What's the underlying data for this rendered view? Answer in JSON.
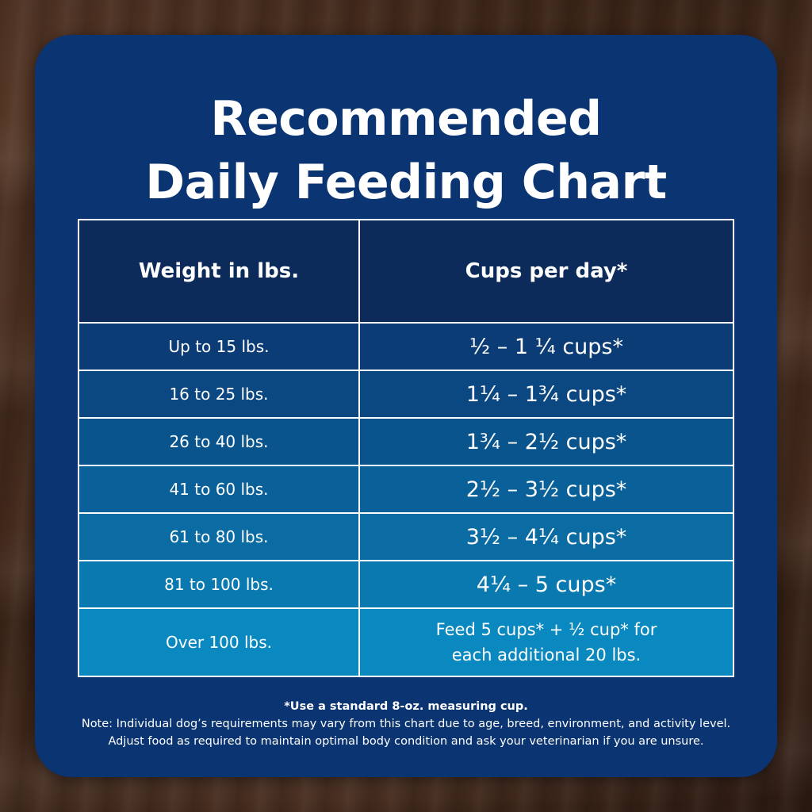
{
  "title_line1": "Recommended",
  "title_line2": "Daily Feeding Chart",
  "chart_data": {
    "type": "table",
    "columns": [
      "Weight in lbs.",
      "Cups per day*"
    ],
    "rows": [
      {
        "weight": "Up to 15 lbs.",
        "cups": "½ – 1 ¼ cups*",
        "color": "#0b3c76"
      },
      {
        "weight": "16 to 25 lbs.",
        "cups": "1¼ – 1¾  cups*",
        "color": "#0b4781"
      },
      {
        "weight": "26 to 40 lbs.",
        "cups": "1¾ – 2½ cups*",
        "color": "#0a548d"
      },
      {
        "weight": "41 to 60 lbs.",
        "cups": "2½ – 3½ cups*",
        "color": "#0a6098"
      },
      {
        "weight": "61 to 80 lbs.",
        "cups": "3½ – 4¼ cups*",
        "color": "#0a6ca3"
      },
      {
        "weight": "81 to 100 lbs.",
        "cups": "4¼ – 5 cups*",
        "color": "#0a79b0"
      },
      {
        "weight": "Over 100 lbs.",
        "cups_line1": "Feed 5 cups* + ½ cup* for",
        "cups_line2": "each additional 20 lbs.",
        "color": "#0a88c0"
      }
    ]
  },
  "footnote": {
    "line1": "*Use a standard 8-oz. measuring cup.",
    "line2": "Note: Individual dog’s requirements may vary from this chart due to age, breed, environment, and activity level.",
    "line3": "Adjust food as required to maintain optimal body condition and ask your veterinarian if you are unsure."
  },
  "colors": {
    "card": "#0a3472",
    "header": "#0c2a5a"
  }
}
